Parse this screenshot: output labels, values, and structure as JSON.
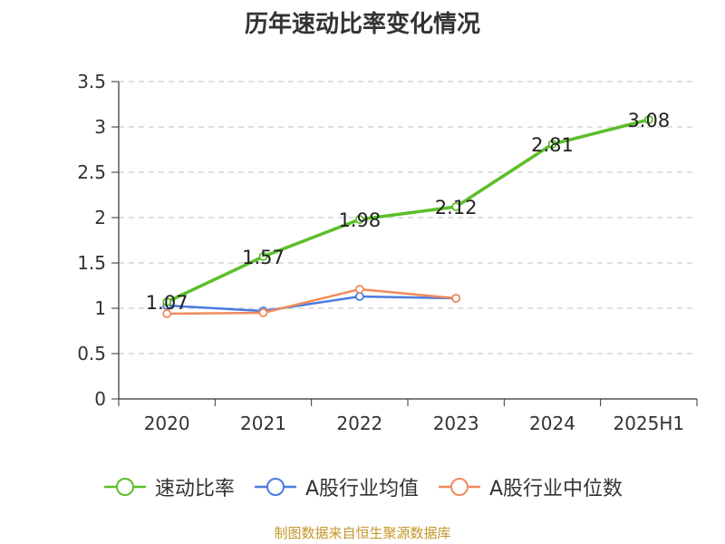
{
  "title": "历年速动比率变化情况",
  "source": "制图数据来自恒生聚源数据库",
  "chart_data": {
    "type": "line",
    "title": "历年速动比率变化情况",
    "categories": [
      "2020",
      "2021",
      "2022",
      "2023",
      "2024",
      "2025H1"
    ],
    "ylim": [
      0,
      3.5
    ],
    "yticks": [
      "0",
      "0.5",
      "1",
      "1.5",
      "2",
      "2.5",
      "3",
      "3.5"
    ],
    "grid": true,
    "legend_position": "bottom",
    "series": [
      {
        "name": "速动比率",
        "color": "#5cbf2a",
        "values": [
          1.07,
          1.57,
          1.98,
          2.12,
          2.81,
          3.08
        ],
        "labels": [
          "1.07",
          "1.57",
          "1.98",
          "2.12",
          "2.81",
          "3.08"
        ]
      },
      {
        "name": "A股行业均值",
        "color": "#4a7be0",
        "values": [
          1.03,
          0.97,
          1.13,
          1.11,
          null,
          null
        ]
      },
      {
        "name": "A股行业中位数",
        "color": "#f08a5d",
        "values": [
          0.94,
          0.95,
          1.21,
          1.11,
          null,
          null
        ]
      }
    ]
  }
}
